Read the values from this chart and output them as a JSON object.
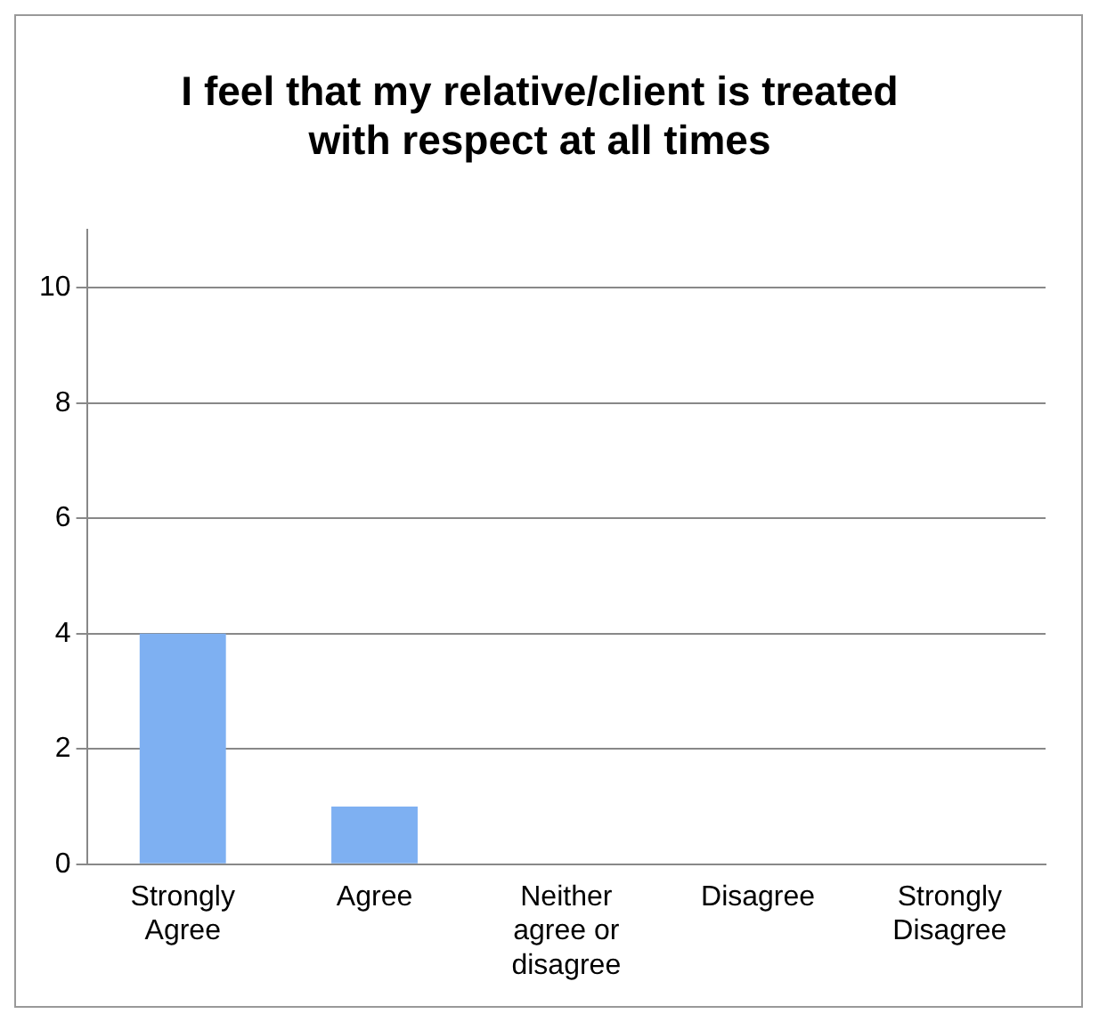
{
  "chart_data": {
    "type": "bar",
    "title": "I feel that my relative/client is treated with respect at all times",
    "categories": [
      "Strongly Agree",
      "Agree",
      "Neither agree or disagree",
      "Disagree",
      "Strongly Disagree"
    ],
    "values": [
      4,
      1,
      0,
      0,
      0
    ],
    "color": "#7eb0f2",
    "ylim": [
      0,
      11
    ],
    "yticks": [
      0,
      2,
      4,
      6,
      8,
      10
    ],
    "grid": "y",
    "legend": false
  }
}
